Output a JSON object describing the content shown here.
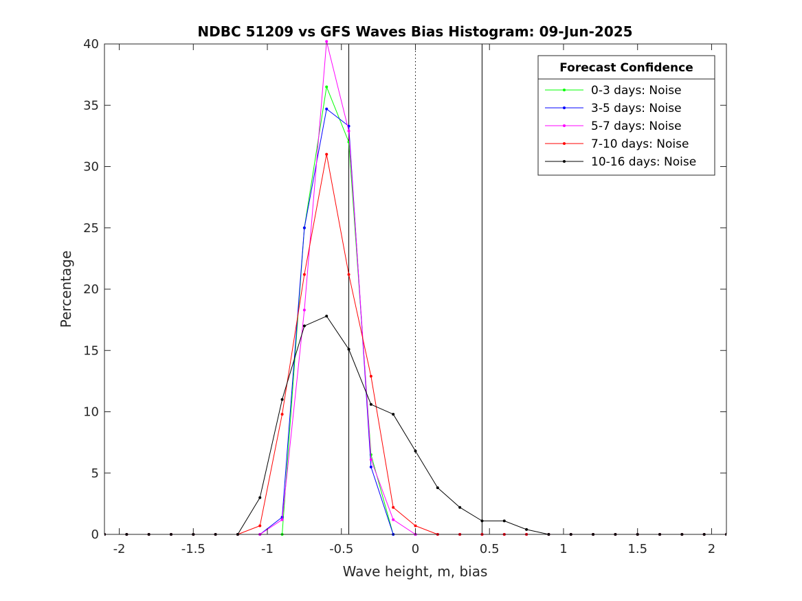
{
  "chart_data": {
    "type": "line",
    "title": "NDBC 51209 vs GFS Waves Bias Histogram: 09-Jun-2025",
    "xlabel": "Wave height, m, bias",
    "ylabel": "Percentage",
    "xlim": [
      -2.1,
      2.1
    ],
    "ylim": [
      0,
      40
    ],
    "xticks": [
      -2,
      -1.5,
      -1,
      -0.5,
      0,
      0.5,
      1,
      1.5,
      2
    ],
    "xtick_labels": [
      "-2",
      "-1.5",
      "-1",
      "-0.5",
      "0",
      "0.5",
      "1",
      "1.5",
      "2"
    ],
    "yticks": [
      0,
      5,
      10,
      15,
      20,
      25,
      30,
      35,
      40
    ],
    "ytick_labels": [
      "0",
      "5",
      "10",
      "15",
      "20",
      "25",
      "30",
      "35",
      "40"
    ],
    "grid": false,
    "reference_lines": [
      {
        "x": -0.45,
        "style": "solid",
        "color": "#000000"
      },
      {
        "x": 0,
        "style": "dotted",
        "color": "#000000"
      },
      {
        "x": 0.45,
        "style": "solid",
        "color": "#000000"
      }
    ],
    "legend": {
      "title": "Forecast Confidence",
      "location": "top-right"
    },
    "x": [
      -2.1,
      -1.95,
      -1.8,
      -1.65,
      -1.5,
      -1.35,
      -1.2,
      -1.05,
      -0.9,
      -0.75,
      -0.6,
      -0.45,
      -0.3,
      -0.15,
      0,
      0.15,
      0.3,
      0.45,
      0.6,
      0.75,
      0.9,
      1.05,
      1.2,
      1.35,
      1.5,
      1.65,
      1.8,
      1.95,
      2.1
    ],
    "series": [
      {
        "name": "0-3 days: Noise",
        "color": "#00ff00",
        "values": [
          0,
          0,
          0,
          0,
          0,
          0,
          0,
          0,
          0,
          25.0,
          36.5,
          32.0,
          6.5,
          0,
          0,
          0,
          0,
          0,
          0,
          0,
          0,
          0,
          0,
          0,
          0,
          0,
          0,
          0,
          0
        ]
      },
      {
        "name": "3-5 days: Noise",
        "color": "#0000ff",
        "values": [
          0,
          0,
          0,
          0,
          0,
          0,
          0,
          0,
          1.4,
          25.0,
          34.7,
          33.3,
          5.5,
          0,
          0,
          0,
          0,
          0,
          0,
          0,
          0,
          0,
          0,
          0,
          0,
          0,
          0,
          0,
          0
        ]
      },
      {
        "name": "5-7 days: Noise",
        "color": "#ff00ff",
        "values": [
          0,
          0,
          0,
          0,
          0,
          0,
          0,
          0,
          1.2,
          18.3,
          40.2,
          32.9,
          6.1,
          1.2,
          0,
          0,
          0,
          0,
          0,
          0,
          0,
          0,
          0,
          0,
          0,
          0,
          0,
          0,
          0
        ]
      },
      {
        "name": "7-10 days: Noise",
        "color": "#ff0000",
        "values": [
          0,
          0,
          0,
          0,
          0,
          0,
          0,
          0.7,
          9.8,
          21.2,
          31.0,
          21.2,
          12.9,
          2.2,
          0.7,
          0,
          0,
          0,
          0,
          0,
          0,
          0,
          0,
          0,
          0,
          0,
          0,
          0,
          0
        ]
      },
      {
        "name": "10-16 days: Noise",
        "color": "#000000",
        "values": [
          0,
          0,
          0,
          0,
          0,
          0,
          0,
          3.0,
          11.0,
          17.0,
          17.8,
          15.1,
          10.6,
          9.8,
          6.8,
          3.8,
          2.2,
          1.1,
          1.1,
          0.4,
          0,
          0,
          0,
          0,
          0,
          0,
          0,
          0,
          0
        ]
      }
    ]
  }
}
